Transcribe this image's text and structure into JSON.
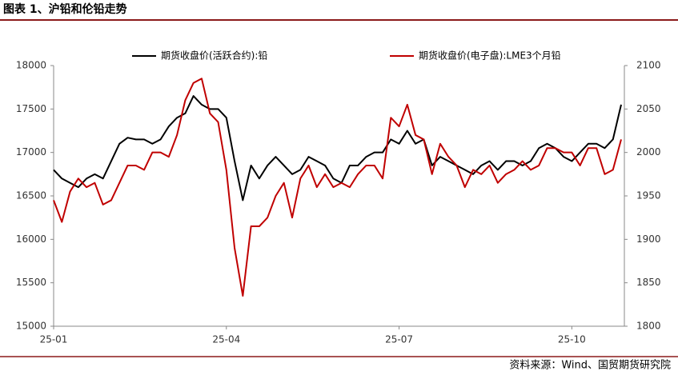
{
  "chart_data": {
    "type": "line",
    "title": "图表 1、沪铅和伦铅走势",
    "source": "资料来源：Wind、国贸期货研究院",
    "categories": [
      "25-01",
      null,
      null,
      null,
      null,
      null,
      null,
      null,
      null,
      null,
      null,
      null,
      null,
      null,
      null,
      null,
      null,
      null,
      null,
      null,
      null,
      "25-04",
      null,
      null,
      null,
      null,
      null,
      null,
      null,
      null,
      null,
      null,
      null,
      null,
      null,
      null,
      null,
      null,
      null,
      null,
      null,
      null,
      "25-07",
      null,
      null,
      null,
      null,
      null,
      null,
      null,
      null,
      null,
      null,
      null,
      null,
      null,
      null,
      null,
      null,
      null,
      null,
      null,
      null,
      "25-10",
      null,
      null,
      null,
      null,
      null,
      null
    ],
    "series": [
      {
        "name": "期货收盘价(活跃合约):铅",
        "color": "#000000",
        "axis": "y",
        "values": [
          16800,
          16700,
          16650,
          16600,
          16700,
          16750,
          16700,
          16900,
          17100,
          17170,
          17150,
          17150,
          17100,
          17150,
          17300,
          17400,
          17450,
          17650,
          17550,
          17500,
          17500,
          17400,
          16900,
          16450,
          16850,
          16700,
          16850,
          16950,
          16850,
          16750,
          16800,
          16950,
          16900,
          16850,
          16700,
          16650,
          16850,
          16850,
          16950,
          17000,
          17000,
          17150,
          17100,
          17250,
          17100,
          17150,
          16850,
          16950,
          16900,
          16850,
          16800,
          16750,
          16850,
          16900,
          16800,
          16900,
          16900,
          16850,
          16900,
          17050,
          17100,
          17050,
          16950,
          16900,
          17000,
          17100,
          17100,
          17050,
          17150,
          17550
        ]
      },
      {
        "name": "期货收盘价(电子盘):LME3个月铅",
        "color": "#c00000",
        "axis": "y2",
        "values": [
          1945,
          1920,
          1955,
          1970,
          1960,
          1965,
          1940,
          1945,
          1965,
          1985,
          1985,
          1980,
          2000,
          2000,
          1995,
          2020,
          2060,
          2080,
          2085,
          2045,
          2035,
          1980,
          1890,
          1835,
          1915,
          1915,
          1925,
          1950,
          1965,
          1925,
          1970,
          1985,
          1960,
          1975,
          1960,
          1965,
          1960,
          1975,
          1985,
          1985,
          1970,
          2040,
          2030,
          2055,
          2020,
          2015,
          1975,
          2010,
          1995,
          1985,
          1960,
          1980,
          1975,
          1985,
          1965,
          1975,
          1980,
          1990,
          1980,
          1985,
          2005,
          2005,
          2000,
          2000,
          1985,
          2005,
          2005,
          1975,
          1980,
          2015
        ]
      }
    ],
    "ylim": [
      15000,
      18000
    ],
    "yticks": [
      15000,
      15500,
      16000,
      16500,
      17000,
      17500,
      18000
    ],
    "y2lim": [
      1800,
      2100
    ],
    "y2ticks": [
      1800,
      1850,
      1900,
      1950,
      2000,
      2050,
      2100
    ],
    "grid": false,
    "legend": "top"
  }
}
